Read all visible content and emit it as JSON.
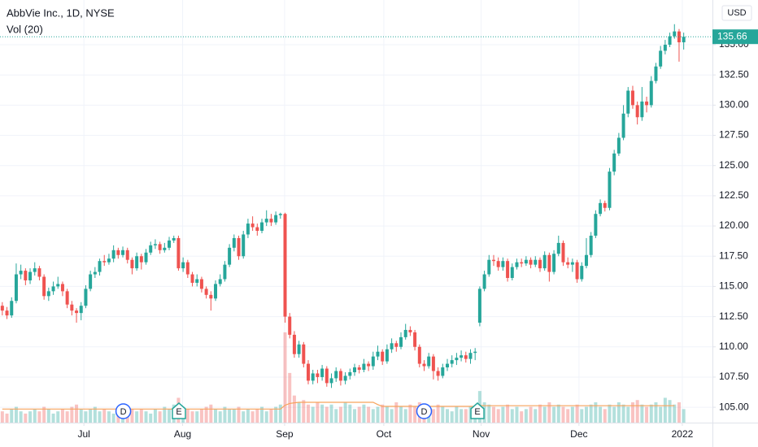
{
  "chart_data": {
    "type": "candlestick",
    "title": "AbbVie Inc., 1D, NYSE",
    "indicator": "Vol (20)",
    "currency": "USD",
    "up_color": "#26a69a",
    "down_color": "#ef5350",
    "ma_color": "#f7a35c",
    "grid": true,
    "ylim": [
      103.73,
      138.7
    ],
    "yticks": [
      {
        "value": 105,
        "label": "105.00"
      },
      {
        "value": 107.5,
        "label": "107.50"
      },
      {
        "value": 110,
        "label": "110.00"
      },
      {
        "value": 112.5,
        "label": "112.50"
      },
      {
        "value": 115,
        "label": "115.00"
      },
      {
        "value": 117.5,
        "label": "117.50"
      },
      {
        "value": 120,
        "label": "120.00"
      },
      {
        "value": 122.5,
        "label": "122.50"
      },
      {
        "value": 125,
        "label": "125.00"
      },
      {
        "value": 127.5,
        "label": "127.50"
      },
      {
        "value": 130,
        "label": "130.00"
      },
      {
        "value": 132.5,
        "label": "132.50"
      },
      {
        "value": 135,
        "label": "135.00"
      }
    ],
    "xlim": [
      -0.5,
      153.2
    ],
    "xticks": [
      {
        "value": 17.6,
        "label": "Jul"
      },
      {
        "value": 38.9,
        "label": "Aug"
      },
      {
        "value": 60.9,
        "label": "Sep"
      },
      {
        "value": 82.3,
        "label": "Oct"
      },
      {
        "value": 103.3,
        "label": "Nov"
      },
      {
        "value": 124.4,
        "label": "Dec"
      },
      {
        "value": 146.7,
        "label": "2022"
      }
    ],
    "volume_ylim": [
      0,
      45
    ],
    "events": [
      {
        "label": "D",
        "index": 26.1
      },
      {
        "label": "E",
        "index": 38.1
      },
      {
        "label": "D",
        "index": 91
      },
      {
        "label": "E",
        "index": 102.5
      }
    ],
    "open": [
      113.4,
      113.0,
      112.6,
      113.8,
      116.0,
      116.3,
      115.5,
      116.2,
      116.5,
      115.8,
      114.2,
      114.6,
      115.0,
      115.2,
      114.6,
      113.5,
      113.0,
      112.8,
      113.4,
      114.8,
      116.0,
      116.2,
      117.1,
      117.0,
      117.3,
      118.0,
      117.6,
      118.0,
      117.2,
      116.5,
      117.5,
      117.0,
      117.8,
      118.4,
      118.5,
      118.0,
      118.2,
      118.8,
      119.0,
      116.5,
      117.0,
      116.0,
      115.3,
      115.6,
      114.8,
      114.3,
      114.0,
      115.2,
      115.6,
      116.8,
      118.2,
      119.0,
      117.5,
      119.3,
      120.2,
      119.9,
      119.6,
      120.3,
      120.6,
      120.3,
      120.9,
      121.0,
      112.5,
      111.0,
      109.4,
      110.2,
      108.6,
      107.2,
      107.8,
      107.5,
      108.2,
      107.0,
      107.4,
      108.0,
      107.2,
      107.6,
      107.9,
      108.3,
      108.1,
      108.6,
      108.4,
      109.2,
      109.6,
      108.8,
      109.8,
      110.3,
      110.0,
      110.8,
      111.4,
      111.2,
      110.0,
      108.6,
      108.4,
      109.2,
      108.0,
      107.6,
      108.3,
      108.6,
      108.9,
      109.1,
      109.3,
      109.0,
      109.5,
      112.0,
      114.8,
      116.0,
      117.2,
      117.1,
      116.6,
      117.1,
      115.7,
      116.6,
      117.0,
      116.9,
      117.2,
      116.8,
      117.2,
      116.5,
      117.6,
      116.2,
      117.7,
      118.6,
      117.0,
      116.8,
      117.0,
      115.6,
      116.7,
      117.6,
      119.2,
      121.0,
      121.9,
      121.5,
      124.5,
      126.0,
      127.3,
      129.3,
      131.2,
      130.0,
      129.0,
      130.3,
      130.0,
      132.0,
      133.2,
      134.5,
      135.0,
      135.7,
      136.1,
      135.2
    ],
    "high": [
      113.7,
      113.3,
      114.1,
      116.9,
      116.8,
      116.5,
      116.5,
      117.0,
      116.7,
      116.0,
      114.9,
      115.4,
      115.8,
      115.4,
      114.8,
      113.8,
      113.2,
      113.7,
      115.1,
      116.3,
      116.6,
      117.3,
      117.6,
      117.7,
      118.4,
      118.2,
      118.3,
      118.2,
      117.4,
      117.8,
      117.7,
      118.1,
      118.7,
      118.9,
      118.7,
      118.6,
      119.1,
      119.2,
      119.2,
      117.4,
      117.2,
      116.2,
      116.0,
      115.8,
      115.0,
      114.6,
      115.5,
      116.0,
      117.1,
      118.5,
      119.3,
      119.2,
      119.6,
      120.6,
      120.8,
      120.2,
      120.6,
      121.3,
      121.0,
      121.2,
      121.1,
      121.1,
      112.8,
      111.3,
      110.5,
      110.4,
      108.9,
      108.1,
      108.1,
      108.5,
      108.4,
      107.8,
      108.3,
      108.2,
      107.9,
      108.2,
      108.6,
      108.5,
      109.0,
      108.8,
      109.6,
      110.1,
      109.8,
      110.2,
      110.7,
      110.5,
      111.2,
      111.9,
      111.7,
      111.4,
      110.2,
      108.9,
      109.5,
      109.4,
      108.3,
      108.6,
      109.0,
      109.3,
      109.5,
      109.7,
      109.6,
      109.8,
      109.9,
      115.0,
      116.3,
      117.6,
      117.6,
      117.4,
      117.4,
      117.3,
      116.9,
      117.3,
      117.3,
      117.5,
      117.4,
      117.5,
      117.4,
      117.9,
      117.8,
      118.0,
      119.2,
      118.8,
      117.4,
      117.3,
      117.2,
      117.0,
      119.0,
      119.5,
      121.3,
      122.2,
      122.1,
      124.8,
      126.3,
      127.7,
      130.0,
      131.5,
      131.6,
      130.3,
      131.5,
      130.7,
      132.4,
      133.5,
      134.9,
      135.4,
      136.0,
      136.7,
      136.3,
      136.0
    ],
    "low": [
      112.6,
      112.3,
      112.4,
      113.6,
      115.6,
      115.1,
      115.2,
      115.9,
      115.5,
      113.9,
      113.8,
      114.3,
      114.8,
      114.2,
      113.2,
      112.6,
      112.0,
      112.2,
      113.2,
      114.6,
      115.7,
      115.9,
      116.7,
      116.8,
      117.0,
      117.3,
      117.4,
      116.9,
      116.0,
      116.3,
      116.4,
      116.8,
      117.6,
      118.1,
      117.7,
      117.8,
      118.0,
      118.6,
      116.3,
      116.2,
      115.7,
      115.0,
      115.0,
      114.5,
      114.0,
      113.0,
      113.8,
      115.0,
      115.4,
      116.6,
      117.9,
      117.2,
      117.3,
      119.0,
      119.6,
      119.2,
      119.4,
      120.0,
      120.0,
      120.1,
      120.6,
      112.0,
      110.7,
      109.1,
      109.1,
      108.3,
      106.9,
      106.9,
      107.0,
      107.2,
      106.7,
      106.6,
      107.1,
      106.8,
      106.9,
      107.3,
      107.6,
      107.8,
      107.9,
      108.0,
      108.1,
      108.9,
      108.5,
      108.6,
      109.5,
      109.6,
      109.8,
      110.6,
      110.9,
      109.7,
      108.3,
      108.0,
      108.2,
      107.3,
      107.2,
      107.4,
      108.0,
      108.3,
      108.5,
      108.8,
      108.7,
      108.6,
      108.9,
      111.7,
      114.6,
      115.8,
      116.7,
      116.3,
      116.3,
      115.4,
      115.5,
      116.4,
      116.6,
      116.7,
      116.5,
      116.6,
      116.2,
      116.3,
      115.4,
      116.0,
      117.5,
      116.7,
      116.5,
      116.2,
      115.3,
      115.4,
      116.5,
      117.4,
      119.0,
      120.8,
      121.2,
      121.3,
      124.2,
      125.8,
      127.1,
      129.0,
      129.7,
      128.4,
      128.7,
      129.4,
      129.8,
      131.8,
      133.0,
      134.2,
      134.8,
      135.5,
      133.6,
      134.6
    ],
    "close": [
      113.0,
      112.6,
      113.8,
      116.0,
      116.3,
      115.5,
      116.2,
      116.5,
      115.8,
      114.2,
      114.6,
      115.0,
      115.2,
      114.6,
      113.5,
      113.0,
      112.8,
      113.4,
      114.8,
      116.0,
      116.2,
      117.1,
      117.0,
      117.3,
      118.0,
      117.6,
      118.0,
      117.2,
      116.5,
      117.5,
      117.0,
      117.8,
      118.4,
      118.5,
      118.0,
      118.2,
      118.8,
      119.0,
      116.5,
      117.0,
      116.0,
      115.3,
      115.6,
      114.8,
      114.3,
      114.0,
      115.2,
      115.6,
      116.8,
      118.2,
      119.0,
      117.5,
      119.3,
      120.2,
      119.9,
      119.6,
      120.3,
      120.6,
      120.3,
      120.9,
      121.0,
      112.5,
      111.0,
      109.4,
      110.2,
      108.6,
      107.2,
      107.8,
      107.5,
      108.2,
      107.0,
      107.4,
      108.0,
      107.2,
      107.6,
      107.9,
      108.3,
      108.1,
      108.6,
      108.4,
      109.2,
      109.6,
      108.8,
      109.8,
      110.3,
      110.0,
      110.8,
      111.4,
      111.2,
      110.0,
      108.6,
      108.4,
      109.2,
      108.0,
      107.6,
      108.3,
      108.6,
      108.9,
      109.1,
      109.3,
      109.0,
      109.5,
      109.6,
      114.8,
      116.0,
      117.2,
      117.1,
      116.6,
      117.1,
      115.7,
      116.6,
      117.0,
      116.9,
      117.2,
      116.8,
      117.2,
      116.5,
      117.6,
      116.2,
      117.7,
      118.6,
      117.0,
      116.8,
      117.0,
      115.6,
      116.7,
      117.6,
      119.2,
      121.0,
      121.9,
      121.5,
      124.5,
      126.0,
      127.3,
      129.3,
      131.2,
      130.0,
      129.0,
      130.3,
      130.0,
      132.0,
      133.2,
      134.5,
      135.0,
      135.7,
      136.1,
      135.2,
      135.66
    ],
    "volume": [
      5,
      4,
      6,
      7,
      5,
      4,
      5,
      6,
      5,
      7,
      6,
      4,
      5,
      6,
      5,
      7,
      8,
      6,
      5,
      6,
      7,
      5,
      6,
      5,
      4,
      6,
      7,
      5,
      6,
      5,
      6,
      5,
      4,
      6,
      5,
      7,
      6,
      8,
      11,
      7,
      6,
      5,
      5,
      6,
      7,
      8,
      6,
      5,
      7,
      6,
      6,
      7,
      5,
      6,
      5,
      6,
      7,
      5,
      6,
      7,
      8,
      40,
      22,
      12,
      9,
      10,
      8,
      7,
      9,
      8,
      7,
      8,
      6,
      7,
      9,
      8,
      6,
      7,
      8,
      7,
      6,
      7,
      8,
      7,
      6,
      9,
      7,
      6,
      8,
      7,
      9,
      8,
      7,
      6,
      8,
      7,
      6,
      5,
      7,
      6,
      6,
      7,
      6,
      14,
      9,
      8,
      7,
      6,
      7,
      8,
      6,
      7,
      5,
      6,
      7,
      6,
      8,
      7,
      9,
      7,
      8,
      7,
      6,
      7,
      8,
      6,
      7,
      8,
      9,
      7,
      6,
      8,
      7,
      9,
      8,
      7,
      9,
      10,
      8,
      7,
      8,
      9,
      7,
      11,
      10,
      8,
      9,
      6
    ],
    "volume_ma": [
      6,
      6,
      6,
      6,
      6,
      6,
      6,
      6,
      6,
      6,
      6,
      6,
      6,
      6,
      6,
      6,
      6,
      6,
      6,
      6,
      6,
      6,
      6,
      6,
      6,
      6,
      6,
      6,
      6,
      6,
      6,
      6,
      6,
      6,
      6,
      6,
      6,
      6,
      6,
      6,
      6,
      6,
      6,
      6,
      6,
      6,
      6,
      6,
      6,
      6,
      6,
      6,
      6,
      6,
      6,
      6,
      6,
      6,
      6,
      6,
      6,
      7.7,
      8.5,
      8.8,
      9,
      9,
      9,
      9,
      9,
      9,
      9,
      9,
      9,
      9,
      9,
      9,
      9,
      9,
      9,
      9,
      9,
      8,
      7.2,
      7.2,
      7.2,
      7.2,
      7.2,
      7.2,
      7.2,
      7.2,
      7.2,
      7.2,
      7.2,
      7.2,
      7.2,
      7.2,
      7.2,
      7.2,
      7.2,
      7.2,
      7.2,
      7.2,
      7.2,
      7.6,
      7.5,
      7.5,
      7.5,
      7.5,
      7.5,
      7.5,
      7.5,
      7.5,
      7.5,
      7.5,
      7.5,
      7.5,
      7.5,
      7.5,
      7.5,
      7.5,
      7.5,
      7.5,
      7.5,
      7.5,
      7.5,
      7.5,
      7.5,
      7.5,
      7.5,
      7.5,
      7.5,
      7.5,
      7.5,
      7.5,
      7.5,
      7.5,
      7.5,
      7.5,
      7.5,
      7.5,
      7.5,
      7.5,
      7.5,
      7.5,
      7.5,
      7.5
    ]
  }
}
